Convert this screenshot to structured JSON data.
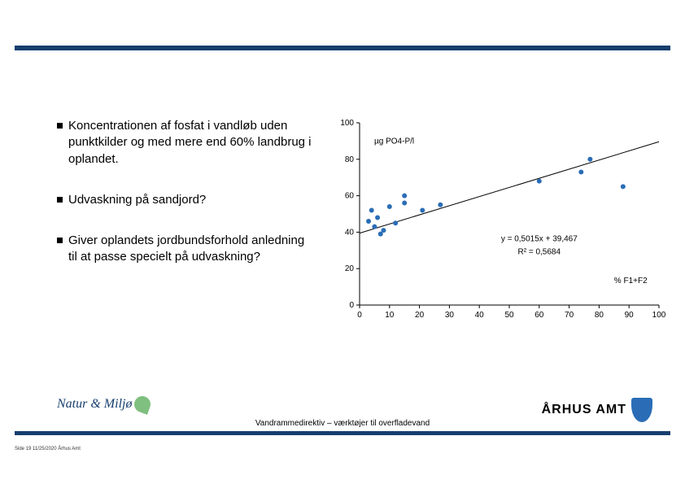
{
  "topbar_color": "#173e6e",
  "bullets": {
    "b1": "Koncentrationen af fosfat i vandløb uden punktkilder og med mere end 60% landbrug i oplandet.",
    "b2": "Udvaskning på sandjord?",
    "b3": "Giver oplandets jordbundsforhold anledning til at passe specielt på udvaskning?"
  },
  "chart": {
    "type": "scatter-with-regression",
    "ylabel": "µg PO4-P/l",
    "xlabel": "% F1+F2",
    "ylim": [
      0,
      100
    ],
    "ytick_step": 20,
    "yticks": [
      0,
      20,
      40,
      60,
      80,
      100
    ],
    "xlim": [
      0,
      100
    ],
    "xtick_step": 10,
    "xticks": [
      0,
      10,
      20,
      30,
      40,
      50,
      60,
      70,
      80,
      90,
      100
    ],
    "point_color": "#2a6db6",
    "point_radius": 3,
    "axis_color": "#000",
    "bg": "#ffffff",
    "points": [
      [
        3,
        46
      ],
      [
        4,
        52
      ],
      [
        5,
        43
      ],
      [
        6,
        48
      ],
      [
        7,
        39
      ],
      [
        8,
        41
      ],
      [
        10,
        54
      ],
      [
        12,
        45
      ],
      [
        15,
        60
      ],
      [
        15,
        56
      ],
      [
        21,
        52
      ],
      [
        27,
        55
      ],
      [
        60,
        68
      ],
      [
        74,
        73
      ],
      [
        77,
        80
      ],
      [
        88,
        65
      ]
    ],
    "regression": {
      "slope": 0.5015,
      "intercept": 39.467,
      "r2": 0.5684,
      "eq": "y = 0,5015x + 39,467",
      "r2_label": "R² = 0,5684",
      "line_color": "#000",
      "line_width": 1
    },
    "label_fontsize": 10,
    "tick_fontsize": 10
  },
  "footer": {
    "caption": "Vandrammedirektiv – værktøjer til overfladevand",
    "left_logo": "Natur & Miljø",
    "right_logo": "ÅRHUS AMT",
    "pageinfo": "Side 19   11/25/2020   Århus Amt"
  }
}
